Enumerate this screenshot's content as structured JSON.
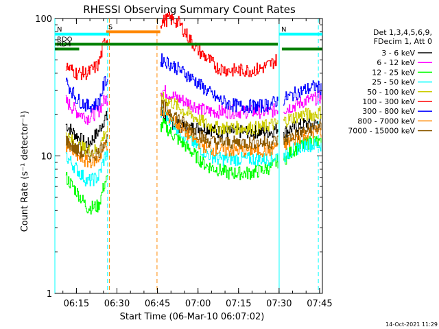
{
  "chart_data": {
    "type": "line",
    "title": "RHESSI Observing Summary Count Rates",
    "xlabel": "Start Time (06-Mar-10 06:07:02)",
    "ylabel": "Count Rate (s⁻¹ detector⁻¹)",
    "ylog": true,
    "ylim": [
      1,
      100
    ],
    "xlim_minutes_after_start": [
      0,
      99
    ],
    "x_tick_labels": [
      "06:15",
      "06:30",
      "06:45",
      "07:00",
      "07:15",
      "07:30",
      "07:45"
    ],
    "x_tick_minutes": [
      7.97,
      22.97,
      37.97,
      52.97,
      67.97,
      82.97,
      97.97
    ],
    "y_tick_labels": [
      "1",
      "10",
      "100"
    ],
    "y_tick_values": [
      1,
      10,
      100
    ],
    "legend": {
      "placement": "right",
      "header": [
        "Det 1,3,4,5,6,9,",
        "FDecim 1, Att 0"
      ]
    },
    "gaps_minutes": [
      [
        19.5,
        39.0
      ],
      [
        82.5,
        84.5
      ]
    ],
    "series": [
      {
        "name": "3 - 6 keV",
        "color": "#000000",
        "x": [
          4,
          8,
          12,
          16,
          18.5,
          40,
          44,
          48,
          52,
          56,
          60,
          64,
          68,
          72,
          76,
          80,
          82,
          85,
          88,
          92,
          96,
          98.5
        ],
        "values": [
          17,
          14,
          12,
          15,
          19,
          20,
          17,
          16,
          16,
          16,
          15,
          15,
          15,
          15,
          15,
          15,
          16,
          15,
          16,
          17,
          17,
          18
        ]
      },
      {
        "name": "6 - 12 keV",
        "color": "#ff00ff",
        "x": [
          4,
          8,
          12,
          16,
          18.5,
          40,
          44,
          48,
          52,
          56,
          60,
          64,
          68,
          72,
          76,
          80,
          82,
          85,
          88,
          92,
          96,
          98.5
        ],
        "values": [
          25,
          21,
          19,
          21,
          26,
          30,
          27,
          25,
          23,
          21,
          21,
          21,
          21,
          21,
          21,
          21,
          22,
          22,
          23,
          25,
          26,
          27
        ]
      },
      {
        "name": "12 - 25 keV",
        "color": "#00ff00",
        "x": [
          4,
          8,
          12,
          16,
          18.5,
          40,
          44,
          48,
          52,
          56,
          60,
          64,
          68,
          72,
          76,
          80,
          82,
          85,
          88,
          92,
          96,
          98.5
        ],
        "values": [
          7,
          5.5,
          4.2,
          4.3,
          6.5,
          17,
          14,
          12,
          10,
          8.5,
          8,
          7.5,
          7.5,
          7.5,
          7.8,
          8.3,
          9,
          9.5,
          11,
          12,
          13,
          12
        ]
      },
      {
        "name": "25 - 50 keV",
        "color": "#00ffff",
        "x": [
          4,
          8,
          12,
          16,
          18.5,
          40,
          44,
          48,
          52,
          56,
          60,
          64,
          68,
          72,
          76,
          80,
          82,
          85,
          88,
          92,
          96,
          98.5
        ],
        "values": [
          10,
          8,
          6.5,
          7,
          10,
          21,
          17,
          14,
          12,
          10.5,
          9.5,
          9.5,
          9.5,
          9.5,
          9.5,
          9.5,
          10,
          10,
          11,
          12,
          12,
          12
        ]
      },
      {
        "name": "50 - 100 keV",
        "color": "#cccc00",
        "x": [
          4,
          8,
          12,
          16,
          18.5,
          40,
          44,
          48,
          52,
          56,
          60,
          64,
          68,
          72,
          76,
          80,
          82,
          85,
          88,
          92,
          96,
          98.5
        ],
        "values": [
          14,
          12,
          11,
          11,
          15,
          26,
          24,
          21,
          19,
          17,
          16,
          16,
          16,
          16,
          16,
          17,
          17,
          18,
          19,
          20,
          20,
          21
        ]
      },
      {
        "name": "100 - 300 keV",
        "color": "#ff0000",
        "x": [
          4,
          8,
          12,
          16,
          18.5,
          40,
          42,
          44,
          46,
          48,
          50,
          52,
          54,
          56,
          58,
          60,
          64,
          68,
          72,
          76,
          80,
          82
        ],
        "values": [
          45,
          40,
          40,
          46,
          70,
          95,
          100,
          97,
          92,
          80,
          70,
          62,
          56,
          52,
          48,
          44,
          42,
          42,
          42,
          43,
          47,
          50
        ]
      },
      {
        "name": "300 - 800 keV",
        "color": "#0000ff",
        "x": [
          4,
          8,
          12,
          16,
          18.5,
          40,
          44,
          48,
          52,
          56,
          60,
          64,
          68,
          72,
          76,
          80,
          82,
          85,
          88,
          92,
          96,
          98.5
        ],
        "values": [
          35,
          26,
          23,
          24,
          35,
          50,
          45,
          40,
          35,
          30,
          26,
          24,
          23,
          23,
          23,
          24,
          25,
          26,
          28,
          30,
          32,
          31
        ]
      },
      {
        "name": "800 - 7000 keV",
        "color": "#ff8800",
        "x": [
          4,
          8,
          12,
          16,
          18.5,
          40,
          44,
          48,
          52,
          56,
          60,
          64,
          68,
          72,
          76,
          80,
          82,
          85,
          88,
          92,
          96,
          98.5
        ],
        "values": [
          12,
          10,
          9,
          9.5,
          12,
          21,
          18,
          15,
          13,
          11.5,
          11,
          11,
          11,
          11,
          11,
          11,
          12,
          12,
          13,
          14,
          15,
          15
        ]
      },
      {
        "name": "7000 - 15000 keV",
        "color": "#8b5a00",
        "x": [
          4,
          8,
          12,
          16,
          18.5,
          40,
          44,
          48,
          52,
          56,
          60,
          64,
          68,
          72,
          76,
          80,
          82,
          85,
          88,
          92,
          96,
          98.5
        ],
        "values": [
          13,
          11,
          10,
          10.5,
          13,
          23,
          20,
          17,
          15,
          13,
          12.5,
          12.5,
          12.5,
          12.5,
          12.5,
          12.5,
          13,
          13,
          14,
          15,
          16,
          16
        ]
      }
    ],
    "annotations": [
      {
        "text": "S",
        "color": "#ff8800",
        "x": [
          19.0,
          39.0
        ],
        "y": 80
      },
      {
        "text": "N",
        "color": "#00ffff",
        "x": [
          0,
          20.0
        ],
        "y": 77
      },
      {
        "text": "N",
        "color": "#00ffff",
        "x": [
          83.0,
          99.0
        ],
        "y": 77
      },
      {
        "text": "RDO",
        "color": "#008000",
        "x": [
          0,
          82.5
        ],
        "y": 65
      },
      {
        "text": "RD4",
        "color": "#008000",
        "x": [
          0,
          9.0
        ],
        "y": 60
      },
      {
        "text": "",
        "color": "#008000",
        "x": [
          84.0,
          99.0
        ],
        "y": 60
      }
    ],
    "vertical_lines": [
      {
        "color": "#00ffff",
        "x": 0,
        "style": "solid"
      },
      {
        "color": "#00ffff",
        "x": 19.5,
        "style": "dashed"
      },
      {
        "color": "#ff8800",
        "x": 20.2,
        "style": "dashed"
      },
      {
        "color": "#ff8800",
        "x": 37.8,
        "style": "dashed"
      },
      {
        "color": "#00ffff",
        "x": 83.0,
        "style": "solid"
      },
      {
        "color": "#00ffff",
        "x": 97.5,
        "style": "dashed"
      }
    ]
  },
  "footer": {
    "timestamp": "14-Oct-2021 11:29"
  }
}
